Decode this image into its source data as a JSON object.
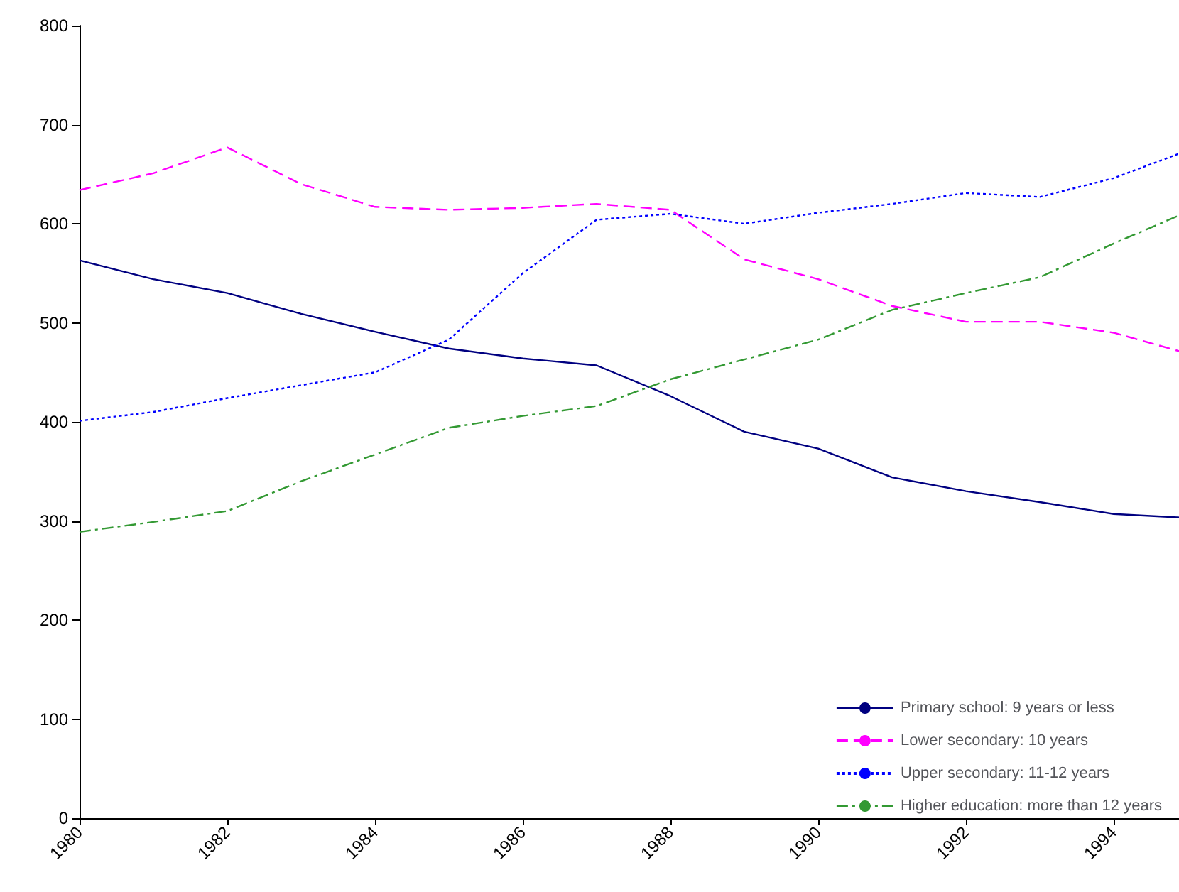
{
  "chart_data": {
    "type": "line",
    "x": [
      1980,
      1981,
      1982,
      1983,
      1984,
      1985,
      1986,
      1987,
      1988,
      1989,
      1990,
      1991,
      1992,
      1993,
      1994,
      1995
    ],
    "series": [
      {
        "name": "Primary school: 9 years or less",
        "color": "#000080",
        "line_style": "solid",
        "values": [
          563,
          544,
          530,
          509,
          491,
          474,
          464,
          457,
          426,
          390,
          373,
          344,
          330,
          319,
          307,
          303
        ]
      },
      {
        "name": "Lower secondary: 10 years",
        "color": "#ff00ff",
        "line_style": "dashed",
        "values": [
          634,
          651,
          677,
          640,
          617,
          614,
          616,
          620,
          614,
          564,
          544,
          517,
          501,
          501,
          490,
          469
        ]
      },
      {
        "name": "Upper secondary: 11-12 years",
        "color": "#0000ff",
        "line_style": "dotted",
        "values": [
          401,
          410,
          424,
          437,
          450,
          483,
          550,
          604,
          610,
          600,
          611,
          620,
          631,
          627,
          646,
          674
        ]
      },
      {
        "name": "Higher education: more than 12 years",
        "color": "#339933",
        "line_style": "dashdot",
        "values": [
          289,
          299,
          310,
          340,
          367,
          394,
          406,
          416,
          443,
          463,
          483,
          513,
          530,
          546,
          580,
          612
        ]
      }
    ],
    "xlim": [
      1980,
      1995
    ],
    "xticks": [
      1980,
      1982,
      1984,
      1986,
      1988,
      1990,
      1992,
      1994
    ],
    "ylim": [
      0,
      800
    ],
    "yticks": [
      0,
      100,
      200,
      300,
      400,
      500,
      600,
      700,
      800
    ],
    "grid": false,
    "legend": "bottom right",
    "marker": "none"
  }
}
